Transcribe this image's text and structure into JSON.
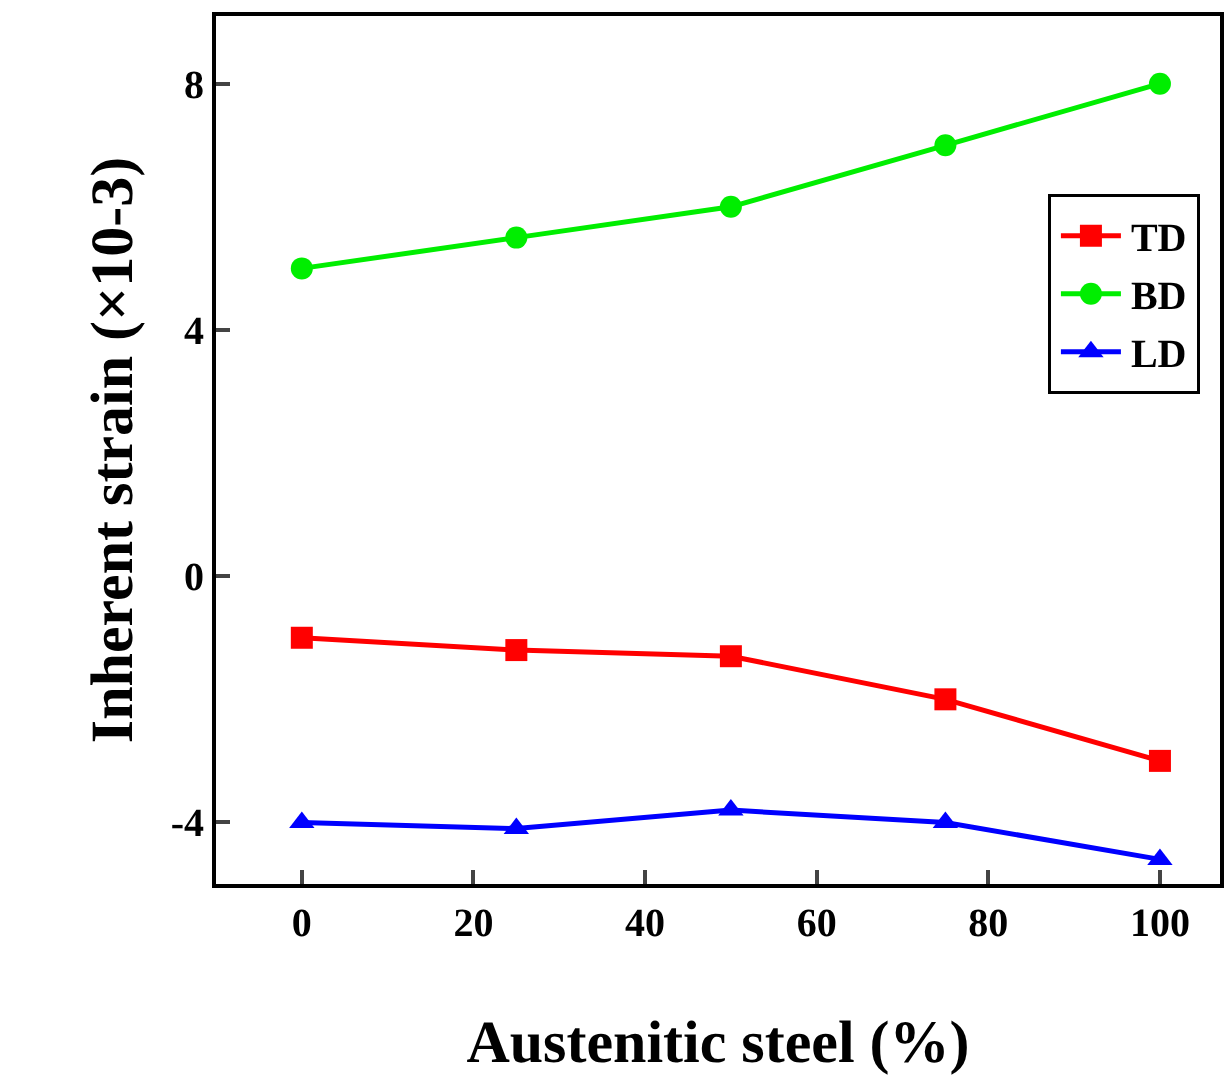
{
  "chart_data": {
    "type": "line",
    "xlabel": "Austenitic steel (%)",
    "ylabel": "Inherent strain (×10-3)",
    "x": [
      0,
      25,
      50,
      75,
      100
    ],
    "series": [
      {
        "name": "TD",
        "color": "#ff0000",
        "marker": "square",
        "values": [
          -1.0,
          -1.2,
          -1.3,
          -2.0,
          -3.0
        ]
      },
      {
        "name": "BD",
        "color": "#00ee00",
        "marker": "circle",
        "values": [
          5.0,
          5.5,
          6.0,
          7.0,
          8.0
        ]
      },
      {
        "name": "LD",
        "color": "#0000ff",
        "marker": "triangle",
        "values": [
          -4.0,
          -4.1,
          -3.8,
          -4.0,
          -4.6
        ]
      }
    ],
    "xlim": [
      -10,
      107
    ],
    "xticks": [
      0,
      20,
      40,
      60,
      80,
      100
    ],
    "ylim": [
      -5,
      9.1
    ],
    "yticks": [
      -4,
      0,
      4,
      8
    ],
    "grid": false,
    "legend": "right",
    "line_style": "solid"
  }
}
